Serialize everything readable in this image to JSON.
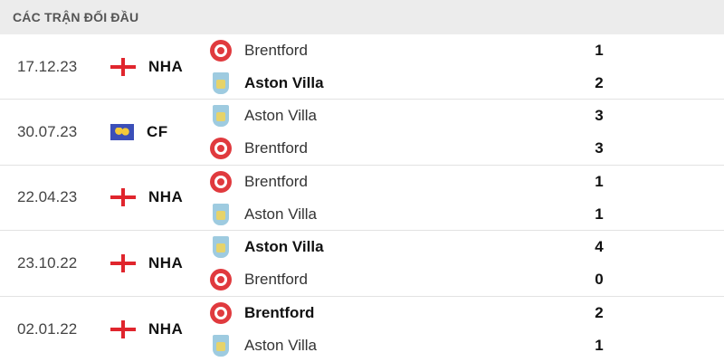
{
  "header": {
    "title": "CÁC TRẬN ĐỐI ĐẦU"
  },
  "matches": [
    {
      "date": "17.12.23",
      "competition": "NHA",
      "flag": "england-flag",
      "home": {
        "name": "Brentford",
        "badge": "brentford",
        "score": "1",
        "winner": false
      },
      "away": {
        "name": "Aston Villa",
        "badge": "villa",
        "score": "2",
        "winner": true
      }
    },
    {
      "date": "30.07.23",
      "competition": "CF",
      "flag": "world-flag",
      "home": {
        "name": "Aston Villa",
        "badge": "villa",
        "score": "3",
        "winner": false
      },
      "away": {
        "name": "Brentford",
        "badge": "brentford",
        "score": "3",
        "winner": false
      }
    },
    {
      "date": "22.04.23",
      "competition": "NHA",
      "flag": "england-flag",
      "home": {
        "name": "Brentford",
        "badge": "brentford",
        "score": "1",
        "winner": false
      },
      "away": {
        "name": "Aston Villa",
        "badge": "villa",
        "score": "1",
        "winner": false
      }
    },
    {
      "date": "23.10.22",
      "competition": "NHA",
      "flag": "england-flag",
      "home": {
        "name": "Aston Villa",
        "badge": "villa",
        "score": "4",
        "winner": true
      },
      "away": {
        "name": "Brentford",
        "badge": "brentford",
        "score": "0",
        "winner": false
      }
    },
    {
      "date": "02.01.22",
      "competition": "NHA",
      "flag": "england-flag",
      "home": {
        "name": "Brentford",
        "badge": "brentford",
        "score": "2",
        "winner": true
      },
      "away": {
        "name": "Aston Villa",
        "badge": "villa",
        "score": "1",
        "winner": false
      }
    }
  ]
}
